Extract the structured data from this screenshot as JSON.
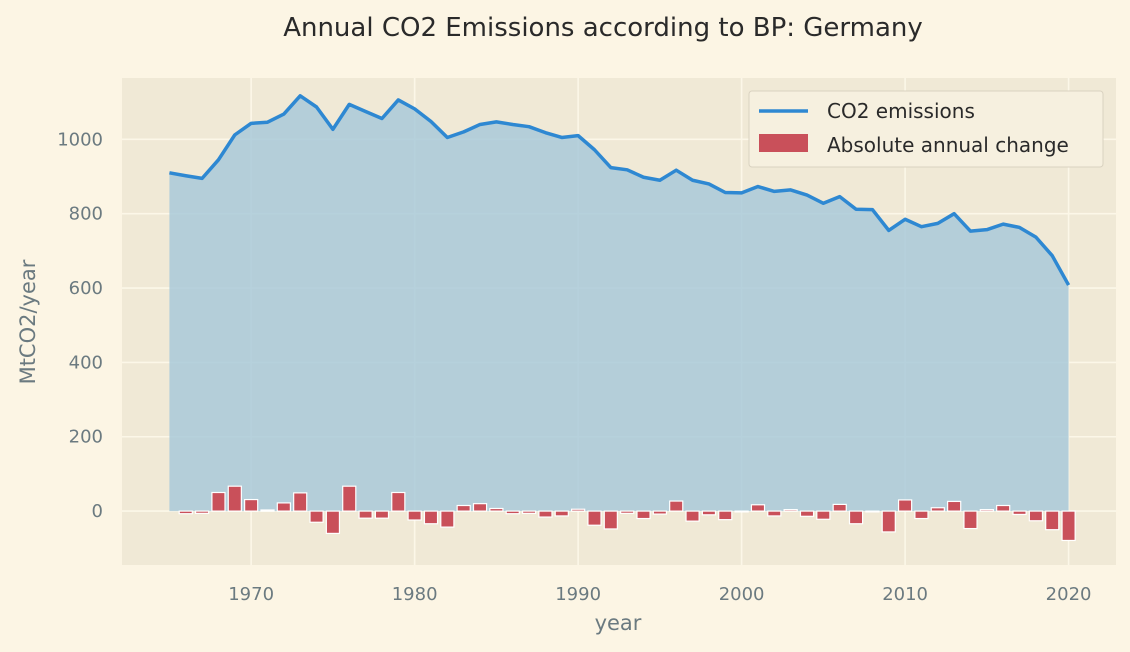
{
  "chart_data": {
    "type": "area",
    "title": "Annual CO2 Emissions according to BP: Germany",
    "xlabel": "year",
    "ylabel": "MtCO2/year",
    "xlim": [
      1962.1,
      2022.9
    ],
    "ylim": [
      -145,
      1165
    ],
    "xticks": [
      1970,
      1980,
      1990,
      2000,
      2010,
      2020
    ],
    "yticks": [
      0,
      200,
      400,
      600,
      800,
      1000
    ],
    "grid": true,
    "legend_position": "top-right",
    "colors": {
      "background": "#fcf5e4",
      "plot_background": "#f0e9d6",
      "grid": "#fcf7e8",
      "line": "#2e88d2",
      "area": "#a6c8d9",
      "bar": "#c9505a",
      "bar_edge": "#ffffff"
    },
    "x": [
      1965,
      1966,
      1967,
      1968,
      1969,
      1970,
      1971,
      1972,
      1973,
      1974,
      1975,
      1976,
      1977,
      1978,
      1979,
      1980,
      1981,
      1982,
      1983,
      1984,
      1985,
      1986,
      1987,
      1988,
      1989,
      1990,
      1991,
      1992,
      1993,
      1994,
      1995,
      1996,
      1997,
      1998,
      1999,
      2000,
      2001,
      2002,
      2003,
      2004,
      2005,
      2006,
      2007,
      2008,
      2009,
      2010,
      2011,
      2012,
      2013,
      2014,
      2015,
      2016,
      2017,
      2018,
      2019,
      2020
    ],
    "series": [
      {
        "name": "CO2 emissions",
        "kind": "line-area",
        "values": [
          910,
          902,
          895,
          945,
          1012,
          1043,
          1046,
          1068,
          1117,
          1087,
          1027,
          1094,
          1075,
          1056,
          1106,
          1082,
          1048,
          1005,
          1020,
          1040,
          1047,
          1040,
          1034,
          1018,
          1005,
          1010,
          972,
          924,
          918,
          898,
          890,
          917,
          890,
          880,
          857,
          856,
          873,
          860,
          864,
          850,
          828,
          846,
          812,
          811,
          755,
          785,
          765,
          774,
          800,
          753,
          757,
          772,
          763,
          737,
          687,
          608
        ]
      },
      {
        "name": "Absolute annual change",
        "kind": "bar",
        "values": [
          null,
          -7,
          -6,
          50,
          67,
          31,
          3,
          22,
          49,
          -30,
          -60,
          67,
          -19,
          -19,
          50,
          -24,
          -34,
          -43,
          15,
          20,
          7,
          -7,
          -6,
          -16,
          -13,
          5,
          -38,
          -48,
          -6,
          -20,
          -8,
          27,
          -27,
          -10,
          -23,
          -1,
          17,
          -13,
          4,
          -14,
          -22,
          18,
          -34,
          -1,
          -56,
          30,
          -20,
          9,
          26,
          -47,
          4,
          15,
          -9,
          -26,
          -50,
          -79
        ]
      }
    ]
  }
}
